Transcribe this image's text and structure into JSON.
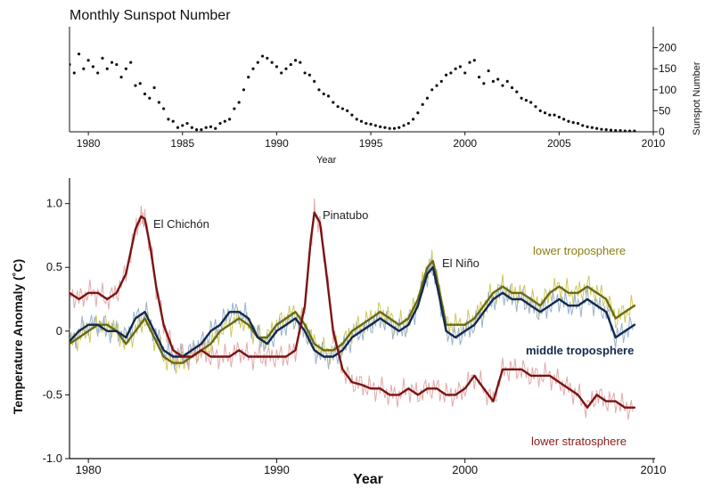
{
  "colors": {
    "dots": "#111111",
    "lower_troposphere": "#6b6a12",
    "lower_troposphere_raw": "#c9c24a",
    "middle_troposphere": "#13294d",
    "middle_troposphere_raw": "#8fa9c4",
    "lower_stratosphere": "#7a1414",
    "lower_stratosphere_raw": "#e0a0a0",
    "axis": "#111111"
  },
  "chart_data": [
    {
      "type": "scatter",
      "title": "Monthly Sunspot Number",
      "xlabel": "Year",
      "ylabel": "Sunspot Number",
      "xlim": [
        1979,
        2010
      ],
      "ylim": [
        0,
        250
      ],
      "xticks": [
        "1980",
        "1985",
        "1990",
        "1995",
        "2000",
        "2005",
        "2010"
      ],
      "yticks": [
        "0",
        "50",
        "100",
        "150",
        "200"
      ],
      "grid": false,
      "series": [
        {
          "name": "Monthly sunspot number",
          "x": [
            1979.0,
            1979.25,
            1979.5,
            1979.75,
            1980.0,
            1980.25,
            1980.5,
            1980.75,
            1981.0,
            1981.25,
            1981.5,
            1981.75,
            1982.0,
            1982.25,
            1982.5,
            1982.75,
            1983.0,
            1983.25,
            1983.5,
            1983.75,
            1984.0,
            1984.25,
            1984.5,
            1984.75,
            1985.0,
            1985.25,
            1985.5,
            1985.75,
            1986.0,
            1986.25,
            1986.5,
            1986.75,
            1987.0,
            1987.25,
            1987.5,
            1987.75,
            1988.0,
            1988.25,
            1988.5,
            1988.75,
            1989.0,
            1989.25,
            1989.5,
            1989.75,
            1990.0,
            1990.25,
            1990.5,
            1990.75,
            1991.0,
            1991.25,
            1991.5,
            1991.75,
            1992.0,
            1992.25,
            1992.5,
            1992.75,
            1993.0,
            1993.25,
            1993.5,
            1993.75,
            1994.0,
            1994.25,
            1994.5,
            1994.75,
            1995.0,
            1995.25,
            1995.5,
            1995.75,
            1996.0,
            1996.25,
            1996.5,
            1996.75,
            1997.0,
            1997.25,
            1997.5,
            1997.75,
            1998.0,
            1998.25,
            1998.5,
            1998.75,
            1999.0,
            1999.25,
            1999.5,
            1999.75,
            2000.0,
            2000.25,
            2000.5,
            2000.75,
            2001.0,
            2001.25,
            2001.5,
            2001.75,
            2002.0,
            2002.25,
            2002.5,
            2002.75,
            2003.0,
            2003.25,
            2003.5,
            2003.75,
            2004.0,
            2004.25,
            2004.5,
            2004.75,
            2005.0,
            2005.25,
            2005.5,
            2005.75,
            2006.0,
            2006.25,
            2006.5,
            2006.75,
            2007.0,
            2007.25,
            2007.5,
            2007.75,
            2008.0,
            2008.25,
            2008.5,
            2008.75,
            2009.0
          ],
          "values": [
            160,
            140,
            185,
            150,
            170,
            155,
            140,
            175,
            150,
            165,
            160,
            130,
            150,
            165,
            110,
            115,
            90,
            80,
            105,
            70,
            55,
            30,
            25,
            10,
            15,
            20,
            10,
            5,
            5,
            10,
            12,
            8,
            20,
            25,
            30,
            55,
            70,
            100,
            130,
            150,
            165,
            180,
            175,
            165,
            155,
            140,
            150,
            160,
            170,
            165,
            140,
            135,
            120,
            100,
            90,
            85,
            70,
            60,
            55,
            50,
            40,
            30,
            25,
            20,
            18,
            15,
            12,
            10,
            8,
            8,
            10,
            15,
            20,
            30,
            45,
            65,
            80,
            100,
            110,
            120,
            135,
            140,
            150,
            155,
            140,
            165,
            170,
            130,
            115,
            145,
            120,
            125,
            110,
            120,
            105,
            95,
            80,
            75,
            70,
            60,
            50,
            45,
            40,
            40,
            35,
            30,
            25,
            22,
            20,
            15,
            12,
            10,
            8,
            6,
            5,
            4,
            3,
            3,
            2,
            2,
            2
          ]
        }
      ]
    },
    {
      "type": "line",
      "title": "",
      "xlabel": "Year",
      "ylabel": "Temperature Anomaly (˚C)",
      "xlim": [
        1979,
        2010
      ],
      "ylim": [
        -1.0,
        1.2
      ],
      "xticks": [
        "1980",
        "1990",
        "2000",
        "2010"
      ],
      "yticks": [
        "-1.0",
        "-0.5",
        "0",
        "0.5",
        "1.0"
      ],
      "grid": false,
      "annotations": [
        {
          "text": "El Chichón",
          "x": 1983.2,
          "y": 0.93
        },
        {
          "text": "Pinatubo",
          "x": 1992.3,
          "y": 0.97
        },
        {
          "text": "El Niño",
          "x": 1998.6,
          "y": 0.57
        }
      ],
      "series": [
        {
          "name": "lower troposphere",
          "x": [
            1979.0,
            1979.5,
            1980.0,
            1980.5,
            1981.0,
            1981.5,
            1982.0,
            1982.5,
            1983.0,
            1983.5,
            1984.0,
            1984.5,
            1985.0,
            1985.5,
            1986.0,
            1986.5,
            1987.0,
            1987.5,
            1988.0,
            1988.5,
            1989.0,
            1989.5,
            1990.0,
            1990.5,
            1991.0,
            1991.5,
            1992.0,
            1992.5,
            1993.0,
            1993.5,
            1994.0,
            1994.5,
            1995.0,
            1995.5,
            1996.0,
            1996.5,
            1997.0,
            1997.5,
            1998.0,
            1998.3,
            1998.6,
            1999.0,
            1999.5,
            2000.0,
            2000.5,
            2001.0,
            2001.5,
            2002.0,
            2002.5,
            2003.0,
            2003.5,
            2004.0,
            2004.5,
            2005.0,
            2005.5,
            2006.0,
            2006.5,
            2007.0,
            2007.5,
            2008.0,
            2008.5,
            2009.0
          ],
          "values": [
            -0.1,
            -0.05,
            0.0,
            0.05,
            0.05,
            0.0,
            -0.1,
            0.0,
            0.1,
            -0.05,
            -0.2,
            -0.25,
            -0.25,
            -0.2,
            -0.15,
            -0.1,
            0.0,
            0.05,
            0.1,
            0.05,
            -0.05,
            -0.05,
            0.05,
            0.1,
            0.15,
            0.05,
            -0.1,
            -0.15,
            -0.15,
            -0.1,
            0.0,
            0.05,
            0.1,
            0.15,
            0.1,
            0.05,
            0.1,
            0.25,
            0.5,
            0.55,
            0.35,
            0.05,
            0.05,
            0.05,
            0.1,
            0.2,
            0.3,
            0.35,
            0.3,
            0.3,
            0.25,
            0.2,
            0.3,
            0.35,
            0.3,
            0.3,
            0.35,
            0.3,
            0.25,
            0.1,
            0.15,
            0.2
          ]
        },
        {
          "name": "middle troposphere",
          "x": [
            1979.0,
            1979.5,
            1980.0,
            1980.5,
            1981.0,
            1981.5,
            1982.0,
            1982.5,
            1983.0,
            1983.5,
            1984.0,
            1984.5,
            1985.0,
            1985.5,
            1986.0,
            1986.5,
            1987.0,
            1987.5,
            1988.0,
            1988.5,
            1989.0,
            1989.5,
            1990.0,
            1990.5,
            1991.0,
            1991.5,
            1992.0,
            1992.5,
            1993.0,
            1993.5,
            1994.0,
            1994.5,
            1995.0,
            1995.5,
            1996.0,
            1996.5,
            1997.0,
            1997.5,
            1998.0,
            1998.3,
            1998.6,
            1999.0,
            1999.5,
            2000.0,
            2000.5,
            2001.0,
            2001.5,
            2002.0,
            2002.5,
            2003.0,
            2003.5,
            2004.0,
            2004.5,
            2005.0,
            2005.5,
            2006.0,
            2006.5,
            2007.0,
            2007.5,
            2008.0,
            2008.5,
            2009.0
          ],
          "values": [
            -0.08,
            0.0,
            0.05,
            0.05,
            0.0,
            0.0,
            -0.05,
            0.1,
            0.15,
            0.0,
            -0.15,
            -0.2,
            -0.2,
            -0.15,
            -0.1,
            0.0,
            0.05,
            0.15,
            0.15,
            0.1,
            -0.05,
            -0.1,
            0.0,
            0.05,
            0.1,
            0.0,
            -0.15,
            -0.2,
            -0.2,
            -0.15,
            -0.05,
            0.0,
            0.05,
            0.1,
            0.05,
            0.0,
            0.05,
            0.2,
            0.45,
            0.5,
            0.3,
            0.0,
            -0.05,
            0.0,
            0.05,
            0.15,
            0.25,
            0.3,
            0.25,
            0.25,
            0.2,
            0.15,
            0.2,
            0.25,
            0.2,
            0.2,
            0.25,
            0.2,
            0.15,
            -0.05,
            0.0,
            0.05
          ]
        },
        {
          "name": "lower stratosphere",
          "x": [
            1979.0,
            1979.5,
            1980.0,
            1980.5,
            1981.0,
            1981.5,
            1982.0,
            1982.5,
            1982.8,
            1983.0,
            1983.3,
            1983.6,
            1984.0,
            1984.5,
            1985.0,
            1985.5,
            1986.0,
            1986.5,
            1987.0,
            1987.5,
            1988.0,
            1988.5,
            1989.0,
            1989.5,
            1990.0,
            1990.5,
            1991.0,
            1991.5,
            1991.8,
            1992.0,
            1992.3,
            1992.6,
            1993.0,
            1993.5,
            1994.0,
            1994.5,
            1995.0,
            1995.5,
            1996.0,
            1996.5,
            1997.0,
            1997.5,
            1998.0,
            1998.5,
            1999.0,
            1999.5,
            2000.0,
            2000.5,
            2001.0,
            2001.5,
            2002.0,
            2002.5,
            2003.0,
            2003.5,
            2004.0,
            2004.5,
            2005.0,
            2005.5,
            2006.0,
            2006.5,
            2007.0,
            2007.5,
            2008.0,
            2008.5,
            2009.0
          ],
          "values": [
            0.3,
            0.25,
            0.3,
            0.3,
            0.25,
            0.3,
            0.45,
            0.8,
            0.9,
            0.88,
            0.65,
            0.35,
            0.05,
            -0.15,
            -0.2,
            -0.2,
            -0.15,
            -0.2,
            -0.2,
            -0.2,
            -0.15,
            -0.2,
            -0.2,
            -0.2,
            -0.2,
            -0.2,
            -0.15,
            0.2,
            0.7,
            0.93,
            0.85,
            0.5,
            0.0,
            -0.3,
            -0.4,
            -0.42,
            -0.45,
            -0.45,
            -0.5,
            -0.5,
            -0.45,
            -0.5,
            -0.45,
            -0.45,
            -0.5,
            -0.5,
            -0.45,
            -0.35,
            -0.45,
            -0.55,
            -0.3,
            -0.3,
            -0.3,
            -0.35,
            -0.35,
            -0.35,
            -0.4,
            -0.45,
            -0.5,
            -0.6,
            -0.5,
            -0.55,
            -0.55,
            -0.6,
            -0.6
          ]
        }
      ],
      "series_labels": [
        "lower troposphere",
        "middle troposphere",
        "lower stratosphere"
      ]
    }
  ]
}
